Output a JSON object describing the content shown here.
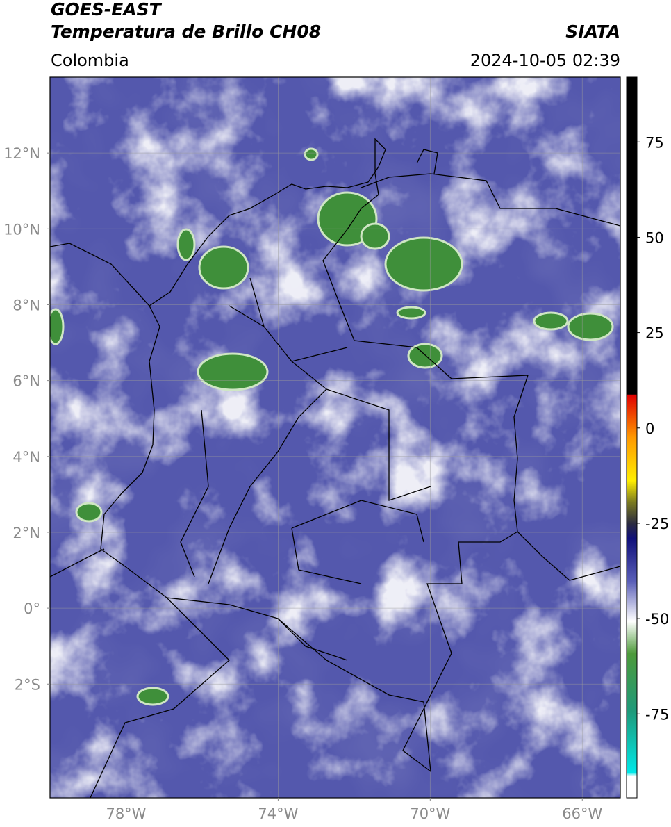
{
  "header": {
    "title": "GOES-EAST",
    "subtitle": "Temperatura de Brillo CH08",
    "source": "SIATA",
    "region": "Colombia",
    "datetime": "2024-10-05 02:39"
  },
  "map": {
    "xlim": [
      -80,
      -65
    ],
    "ylim": [
      -5,
      14
    ],
    "xticks": [
      {
        "value": -78,
        "label": "78°W"
      },
      {
        "value": -74,
        "label": "74°W"
      },
      {
        "value": -70,
        "label": "70°W"
      },
      {
        "value": -66,
        "label": "66°W"
      }
    ],
    "yticks": [
      {
        "value": 12,
        "label": "12°N"
      },
      {
        "value": 10,
        "label": "10°N"
      },
      {
        "value": 8,
        "label": "8°N"
      },
      {
        "value": 6,
        "label": "6°N"
      },
      {
        "value": 4,
        "label": "4°N"
      },
      {
        "value": 2,
        "label": "2°N"
      },
      {
        "value": 0,
        "label": "0°"
      },
      {
        "value": -2,
        "label": "2°S"
      }
    ],
    "grid": true
  },
  "colorbar": {
    "lim": [
      -97,
      92
    ],
    "ticks": [
      75,
      50,
      25,
      0,
      -25,
      -50,
      -75
    ]
  }
}
